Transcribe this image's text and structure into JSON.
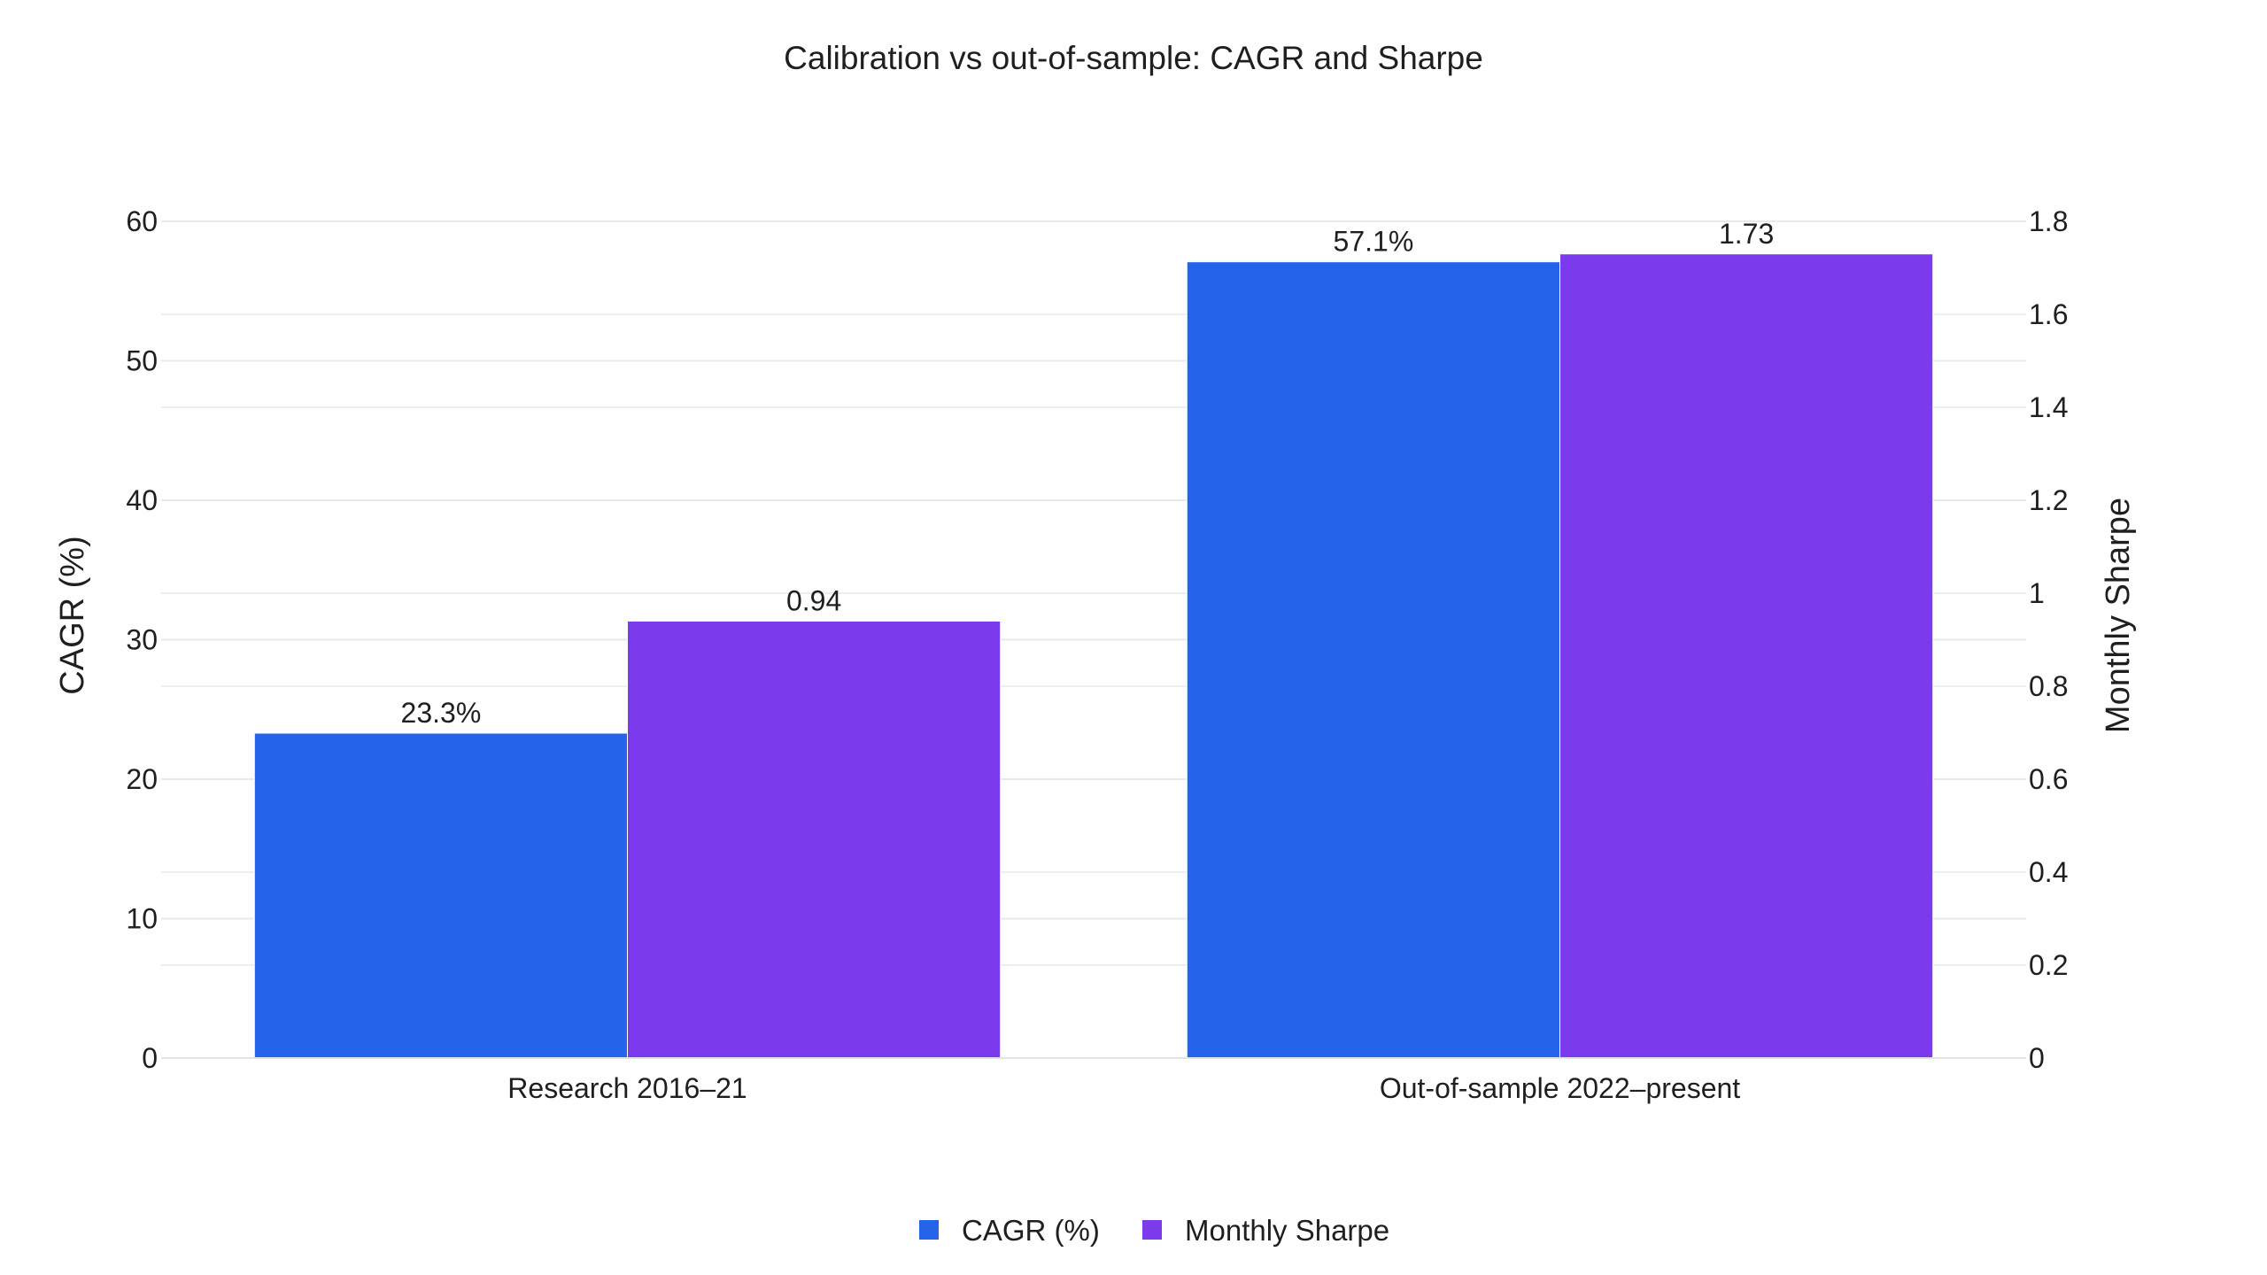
{
  "chart_data": {
    "type": "bar",
    "title": "Calibration vs out-of-sample: CAGR and Sharpe",
    "categories": [
      "Research 2016–21",
      "Out-of-sample 2022–present"
    ],
    "series": [
      {
        "name": "CAGR (%)",
        "axis": "left",
        "values": [
          23.3,
          57.1
        ],
        "labels": [
          "23.3%",
          "57.1%"
        ],
        "color": "#2563eb"
      },
      {
        "name": "Monthly Sharpe",
        "axis": "right",
        "values": [
          0.94,
          1.73
        ],
        "labels": [
          "0.94",
          "1.73"
        ],
        "color": "#7c3aed"
      }
    ],
    "y_left": {
      "label": "CAGR (%)",
      "range": [
        0,
        60
      ],
      "ticks": [
        0,
        10,
        20,
        30,
        40,
        50,
        60
      ],
      "tick_labels": [
        "0",
        "10",
        "20",
        "30",
        "40",
        "50",
        "60"
      ]
    },
    "y_right": {
      "label": "Monthly Sharpe",
      "range": [
        0,
        1.8
      ],
      "ticks": [
        0,
        0.2,
        0.4,
        0.6,
        0.8,
        1,
        1.2,
        1.4,
        1.6,
        1.8
      ],
      "tick_labels": [
        "0",
        "0.2",
        "0.4",
        "0.6",
        "0.8",
        "1",
        "1.2",
        "1.4",
        "1.6",
        "1.8"
      ]
    },
    "grid": true,
    "legend_position": "bottom-center",
    "gridline_color": "#e6e9f2"
  }
}
